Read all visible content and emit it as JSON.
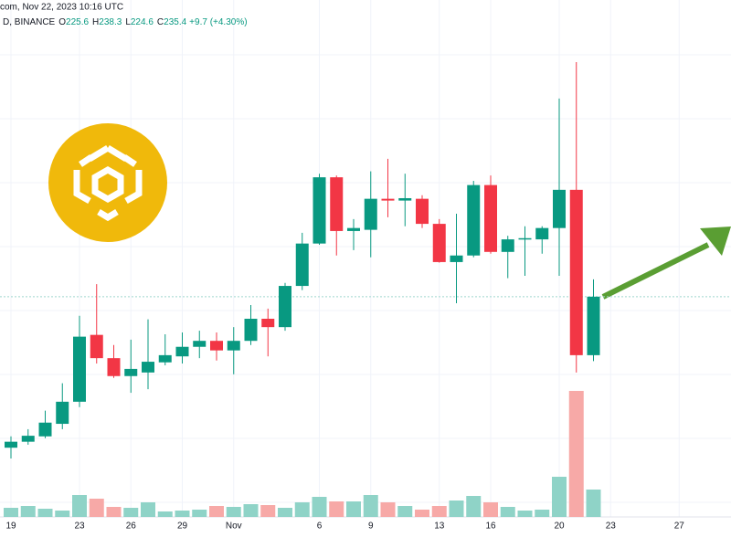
{
  "header": {
    "line1": "com, Nov 22, 2023 10:16 UTC",
    "symbol": "D, BINANCE",
    "ohlc": [
      {
        "key": "O",
        "value": "225.6"
      },
      {
        "key": "H",
        "value": "238.3"
      },
      {
        "key": "L",
        "value": "224.6"
      },
      {
        "key": "C",
        "value": "235.4"
      }
    ],
    "change": "+9.7 (+4.30%)"
  },
  "chart_data": {
    "type": "candlestick",
    "categories": [
      "19",
      null,
      null,
      null,
      "23",
      null,
      null,
      "26",
      null,
      null,
      "29",
      null,
      null,
      "Nov",
      null,
      null,
      null,
      null,
      "6",
      null,
      null,
      "9",
      null,
      null,
      null,
      "13",
      null,
      null,
      "16",
      null,
      null,
      null,
      "20",
      null,
      null,
      "23",
      null,
      null,
      null,
      "27",
      null,
      null
    ],
    "open": [
      210.1,
      211.1,
      212.0,
      214.1,
      217.8,
      229.0,
      225.1,
      222.1,
      222.7,
      224.4,
      225.4,
      227.0,
      228.0,
      226.4,
      228.0,
      231.7,
      230.3,
      237.2,
      244.3,
      255.4,
      246.4,
      246.6,
      251.8,
      251.5,
      251.8,
      247.6,
      241.2,
      242.3,
      254.1,
      242.9,
      245.0,
      245.0,
      246.9,
      253.3,
      225.6,
      null,
      null,
      null,
      null,
      null,
      null,
      null
    ],
    "high": [
      212.0,
      213.2,
      216.3,
      220.9,
      232.2,
      237.5,
      227.3,
      228.2,
      231.6,
      229.1,
      229.4,
      229.7,
      229.4,
      230.3,
      234.0,
      233.4,
      237.7,
      246.1,
      256.0,
      255.7,
      248.4,
      256.4,
      258.5,
      256.0,
      252.4,
      248.4,
      249.3,
      254.8,
      255.7,
      245.6,
      247.2,
      247.2,
      268.6,
      274.7,
      238.3,
      null,
      null,
      null,
      null,
      null,
      null,
      null
    ],
    "low": [
      208.3,
      210.6,
      211.7,
      213.2,
      216.9,
      224.2,
      221.8,
      219.3,
      219.9,
      223.9,
      224.2,
      225.1,
      224.7,
      222.4,
      227.3,
      225.4,
      229.7,
      236.5,
      244.1,
      242.3,
      243.2,
      242.0,
      248.7,
      247.2,
      246.9,
      241.1,
      234.3,
      242.0,
      242.6,
      238.5,
      238.9,
      242.6,
      238.9,
      222.7,
      224.6,
      null,
      null,
      null,
      null,
      null,
      null,
      null
    ],
    "close": [
      211.1,
      212.1,
      214.3,
      217.8,
      228.7,
      225.1,
      222.1,
      223.3,
      224.5,
      225.6,
      227.0,
      228.0,
      226.4,
      228.0,
      231.7,
      230.3,
      237.2,
      244.3,
      255.4,
      246.4,
      246.9,
      251.8,
      251.5,
      251.9,
      247.6,
      241.2,
      242.3,
      254.1,
      242.9,
      245.0,
      245.2,
      246.9,
      253.3,
      225.6,
      235.4,
      null,
      null,
      null,
      null,
      null,
      null,
      null
    ],
    "volume": [
      10,
      12,
      9,
      7,
      24,
      20,
      11,
      10,
      16,
      6,
      7,
      8,
      12,
      11,
      14,
      13,
      10,
      16,
      22,
      17,
      17,
      24,
      16,
      12,
      8,
      12,
      18,
      23,
      16,
      11,
      7,
      8,
      44,
      138,
      30,
      null,
      null,
      null,
      null,
      null,
      null,
      null
    ],
    "up_color": "#089981",
    "down_color": "#f23645",
    "up_volume_color": "#8fd3c7",
    "down_volume_color": "#f7a9a7",
    "ylim": [
      198.5,
      285.1
    ],
    "volume_max": 566,
    "price_line": true,
    "grid": true
  }
}
